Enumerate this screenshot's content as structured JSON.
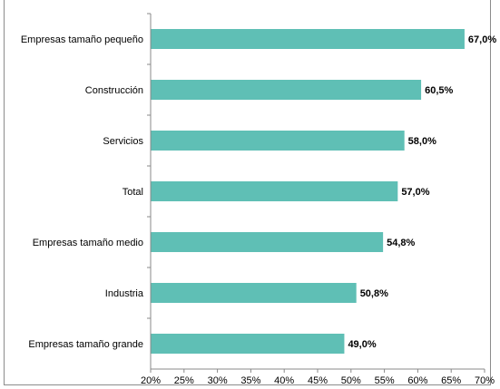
{
  "chart_data": {
    "type": "bar",
    "orientation": "horizontal",
    "title": "",
    "xlabel": "",
    "ylabel": "",
    "categories": [
      "Empresas tamaño pequeño",
      "Construcción",
      "Servicios",
      "Total",
      "Empresas tamaño medio",
      "Industria",
      "Empresas tamaño grande"
    ],
    "values": [
      67.0,
      60.5,
      58.0,
      57.0,
      54.8,
      50.8,
      49.0
    ],
    "value_labels": [
      "67,0%",
      "60,5%",
      "58,0%",
      "57,0%",
      "54,8%",
      "50,8%",
      "49,0%"
    ],
    "xlim": [
      20,
      70
    ],
    "x_ticks": [
      20,
      25,
      30,
      35,
      40,
      45,
      50,
      55,
      60,
      65,
      70
    ],
    "x_tick_labels": [
      "20%",
      "25%",
      "30%",
      "35%",
      "40%",
      "45%",
      "50%",
      "55%",
      "60%",
      "65%",
      "70%"
    ],
    "grid": false,
    "legend": "none",
    "colors": {
      "bar": "#5fbfb5",
      "axis": "#888888",
      "text": "#000000"
    }
  }
}
